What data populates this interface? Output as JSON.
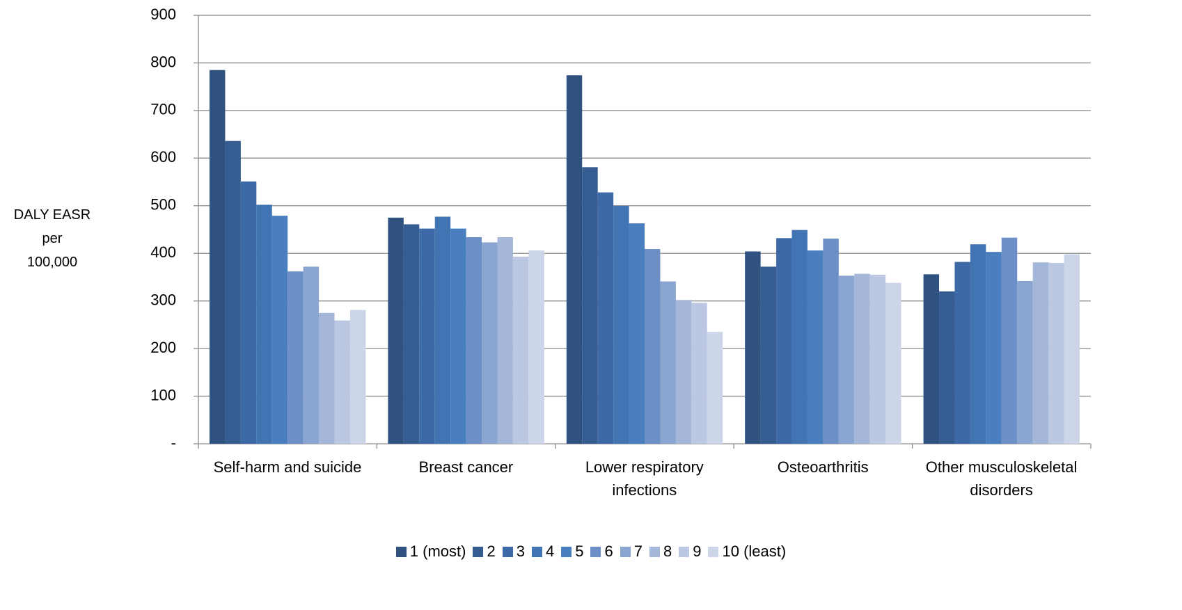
{
  "chart_data": {
    "type": "bar",
    "ylabel": [
      "DALY EASR",
      "per",
      "100,000"
    ],
    "categories": [
      "Self-harm and suicide",
      "Breast cancer",
      "Lower respiratory infections",
      "Osteoarthritis",
      "Other musculoskeletal disorders"
    ],
    "ylim": [
      0,
      900
    ],
    "yticks": [
      {
        "value": 0,
        "label": "-"
      },
      100,
      200,
      300,
      400,
      500,
      600,
      700,
      800,
      900
    ],
    "grid": true,
    "legend": "bottom",
    "series": [
      {
        "name": "1 (most)",
        "color": "#2f5280",
        "values": [
          785,
          475,
          774,
          404,
          356
        ]
      },
      {
        "name": "2",
        "color": "#355d91",
        "values": [
          636,
          461,
          581,
          372,
          320
        ]
      },
      {
        "name": "3",
        "color": "#3d6aa6",
        "values": [
          551,
          452,
          528,
          432,
          382
        ]
      },
      {
        "name": "4",
        "color": "#4174b2",
        "values": [
          502,
          477,
          500,
          449,
          419
        ]
      },
      {
        "name": "5",
        "color": "#4a7fbf",
        "values": [
          479,
          452,
          463,
          406,
          403
        ]
      },
      {
        "name": "6",
        "color": "#6b8fc6",
        "values": [
          362,
          434,
          409,
          431,
          433
        ]
      },
      {
        "name": "7",
        "color": "#8aa5cf",
        "values": [
          372,
          423,
          341,
          353,
          342
        ]
      },
      {
        "name": "8",
        "color": "#a5b7d9",
        "values": [
          275,
          434,
          302,
          357,
          381
        ]
      },
      {
        "name": "9",
        "color": "#bcc7e2",
        "values": [
          259,
          393,
          296,
          355,
          380
        ]
      },
      {
        "name": "10 (least)",
        "color": "#cdd6e8",
        "values": [
          281,
          406,
          235,
          338,
          398
        ]
      }
    ]
  }
}
